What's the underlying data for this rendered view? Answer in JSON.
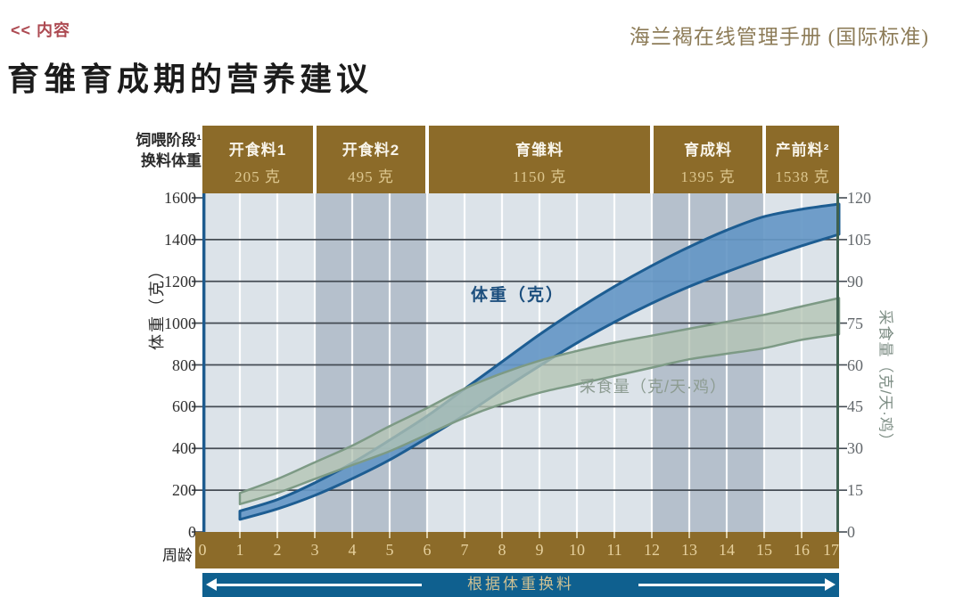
{
  "header": {
    "back_link": "<< 内容",
    "manual_title": "海兰褐在线管理手册 (国际标准)",
    "page_title": "育雏育成期的营养建议"
  },
  "chart_data": {
    "type": "area",
    "title": "育雏育成期的营养建议",
    "row_labels": {
      "stage": "饲喂阶段¹",
      "weight": "换料体重"
    },
    "stages": [
      {
        "name": "开食料1",
        "weight": "205 克",
        "from_week": 0,
        "to_week": 3,
        "shade": "light"
      },
      {
        "name": "开食料2",
        "weight": "495 克",
        "from_week": 3,
        "to_week": 6,
        "shade": "dark"
      },
      {
        "name": "育雏料",
        "weight": "1150 克",
        "from_week": 6,
        "to_week": 12,
        "shade": "light"
      },
      {
        "name": "育成料",
        "weight": "1395 克",
        "from_week": 12,
        "to_week": 15,
        "shade": "dark"
      },
      {
        "name": "产前料²",
        "weight": "1538 克",
        "from_week": 15,
        "to_week": 17,
        "shade": "light"
      }
    ],
    "x_axis": {
      "title": "周龄",
      "min": 0,
      "max": 17,
      "week_labels": [
        "0",
        "1",
        "2",
        "3",
        "4",
        "5",
        "6",
        "7",
        "8",
        "9",
        "10",
        "11",
        "12",
        "13",
        "14",
        "15",
        "16",
        "17"
      ]
    },
    "y_left": {
      "title": "体重（克）",
      "min": 0,
      "max": 1600,
      "ticks": [
        0,
        200,
        400,
        600,
        800,
        1000,
        1200,
        1400,
        1600
      ]
    },
    "y_right": {
      "title": "采食量（克/天·鸡）",
      "min": 0,
      "max": 120,
      "ticks": [
        0,
        15,
        30,
        45,
        60,
        75,
        90,
        105,
        120
      ]
    },
    "series": [
      {
        "name": "体重（克）",
        "axis": "left",
        "x": [
          1,
          2,
          3,
          4,
          5,
          6,
          7,
          8,
          9,
          10,
          11,
          12,
          13,
          14,
          15,
          16,
          17
        ],
        "lower": [
          60,
          110,
          175,
          255,
          345,
          450,
          560,
          680,
          795,
          905,
          1005,
          1095,
          1175,
          1245,
          1310,
          1370,
          1425
        ],
        "upper": [
          100,
          155,
          235,
          330,
          440,
          555,
          685,
          815,
          945,
          1065,
          1175,
          1275,
          1365,
          1445,
          1510,
          1545,
          1570
        ],
        "fill": "#6597c5",
        "edge": "#1d5d92",
        "fill_opacity": 0.92
      },
      {
        "name": "采食量（克/天·鸡）",
        "axis": "right",
        "x": [
          1,
          2,
          3,
          4,
          5,
          6,
          7,
          8,
          9,
          10,
          11,
          12,
          13,
          14,
          15,
          16,
          17
        ],
        "lower": [
          10,
          14,
          19,
          24,
          29,
          35,
          41,
          46,
          50,
          53,
          56,
          59,
          62,
          64,
          66,
          69,
          71
        ],
        "upper": [
          14,
          19,
          25,
          31,
          38,
          44.5,
          51.5,
          57,
          61.5,
          65,
          68,
          70.5,
          73,
          75.5,
          78,
          81,
          84
        ],
        "fill": "#b3c4b3",
        "edge": "#7d9a85",
        "fill_opacity": 0.78
      }
    ],
    "footer_bar": {
      "label": "根据体重换料"
    },
    "layout": {
      "grid": true,
      "shade_light": "#dce3e9",
      "shade_dark": "#b5c0cc"
    },
    "colors": {
      "stage_box": "#8c6b29",
      "stage_name": "#f8f4ea",
      "stage_value": "#ddc78f",
      "grid_line": "#454c54",
      "week_line": "#ffffff",
      "axis_left": "#1d5a8e",
      "axis_right": "#3f6150",
      "footer_bar": "#0f608f",
      "footer_text": "#cfc193",
      "back_link": "#ad4a52",
      "manual_title": "#8d7c58"
    }
  }
}
